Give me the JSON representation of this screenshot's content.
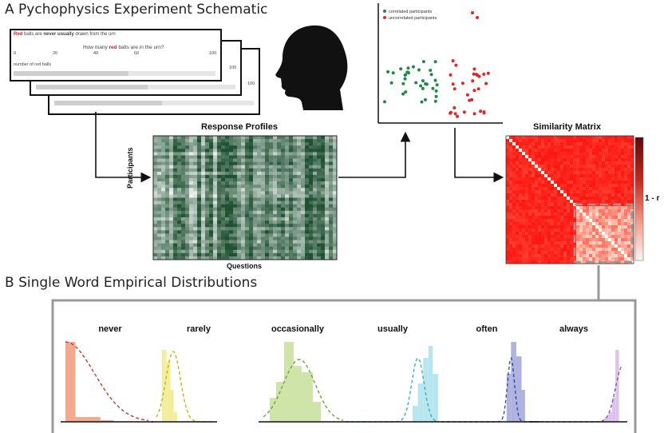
{
  "sectionA": {
    "title": "A Pychophysics Experiment Schematic"
  },
  "sectionB": {
    "title": "B Single Word Empirical Distributions"
  },
  "questionCard": {
    "line1_red": "Red",
    "line1_a": " balls are ",
    "line1_never": "never",
    "line1_usually": " usually",
    "line1_b": " drawn from the urn",
    "question_a": "How many ",
    "question_red": "red",
    "question_b": " balls are in the urn?",
    "ticks": [
      "0",
      "20",
      "40",
      "60",
      "100"
    ],
    "slider_label": "number of red balls",
    "slider_value_pct": 57,
    "back_tick": "100",
    "back_slider_values_pct": [
      56,
      54
    ]
  },
  "responseProfiles": {
    "title": "Response Profiles",
    "ylabel": "Participants",
    "xlabel": "Questions"
  },
  "scatter": {
    "legend": [
      {
        "label": "correlated participants",
        "color": "#1e8a45"
      },
      {
        "label": "uncorrelated participants",
        "color": "#e02626"
      }
    ]
  },
  "similarity": {
    "title": "Similarity Matrix",
    "colorbar_label": "1 - r"
  },
  "distributions": [
    {
      "label": "never",
      "color": "#f2a98c",
      "line": "#c0392b"
    },
    {
      "label": "rarely",
      "color": "#f3ee9a",
      "line": "#c9b400"
    },
    {
      "label": "occasionally",
      "color": "#cfe4a8",
      "line": "#6ea33a"
    },
    {
      "label": "usually",
      "color": "#b8e6ee",
      "line": "#39aec4"
    },
    {
      "label": "often",
      "color": "#aeb3e0",
      "line": "#3b4aa0"
    },
    {
      "label": "always",
      "color": "#dcc2ec",
      "line": "#8b4fb3"
    }
  ],
  "colors": {
    "red_accent": "#d21f1f",
    "green_matrix": "#1f7a32",
    "matrix_red": "#d42a1f"
  }
}
